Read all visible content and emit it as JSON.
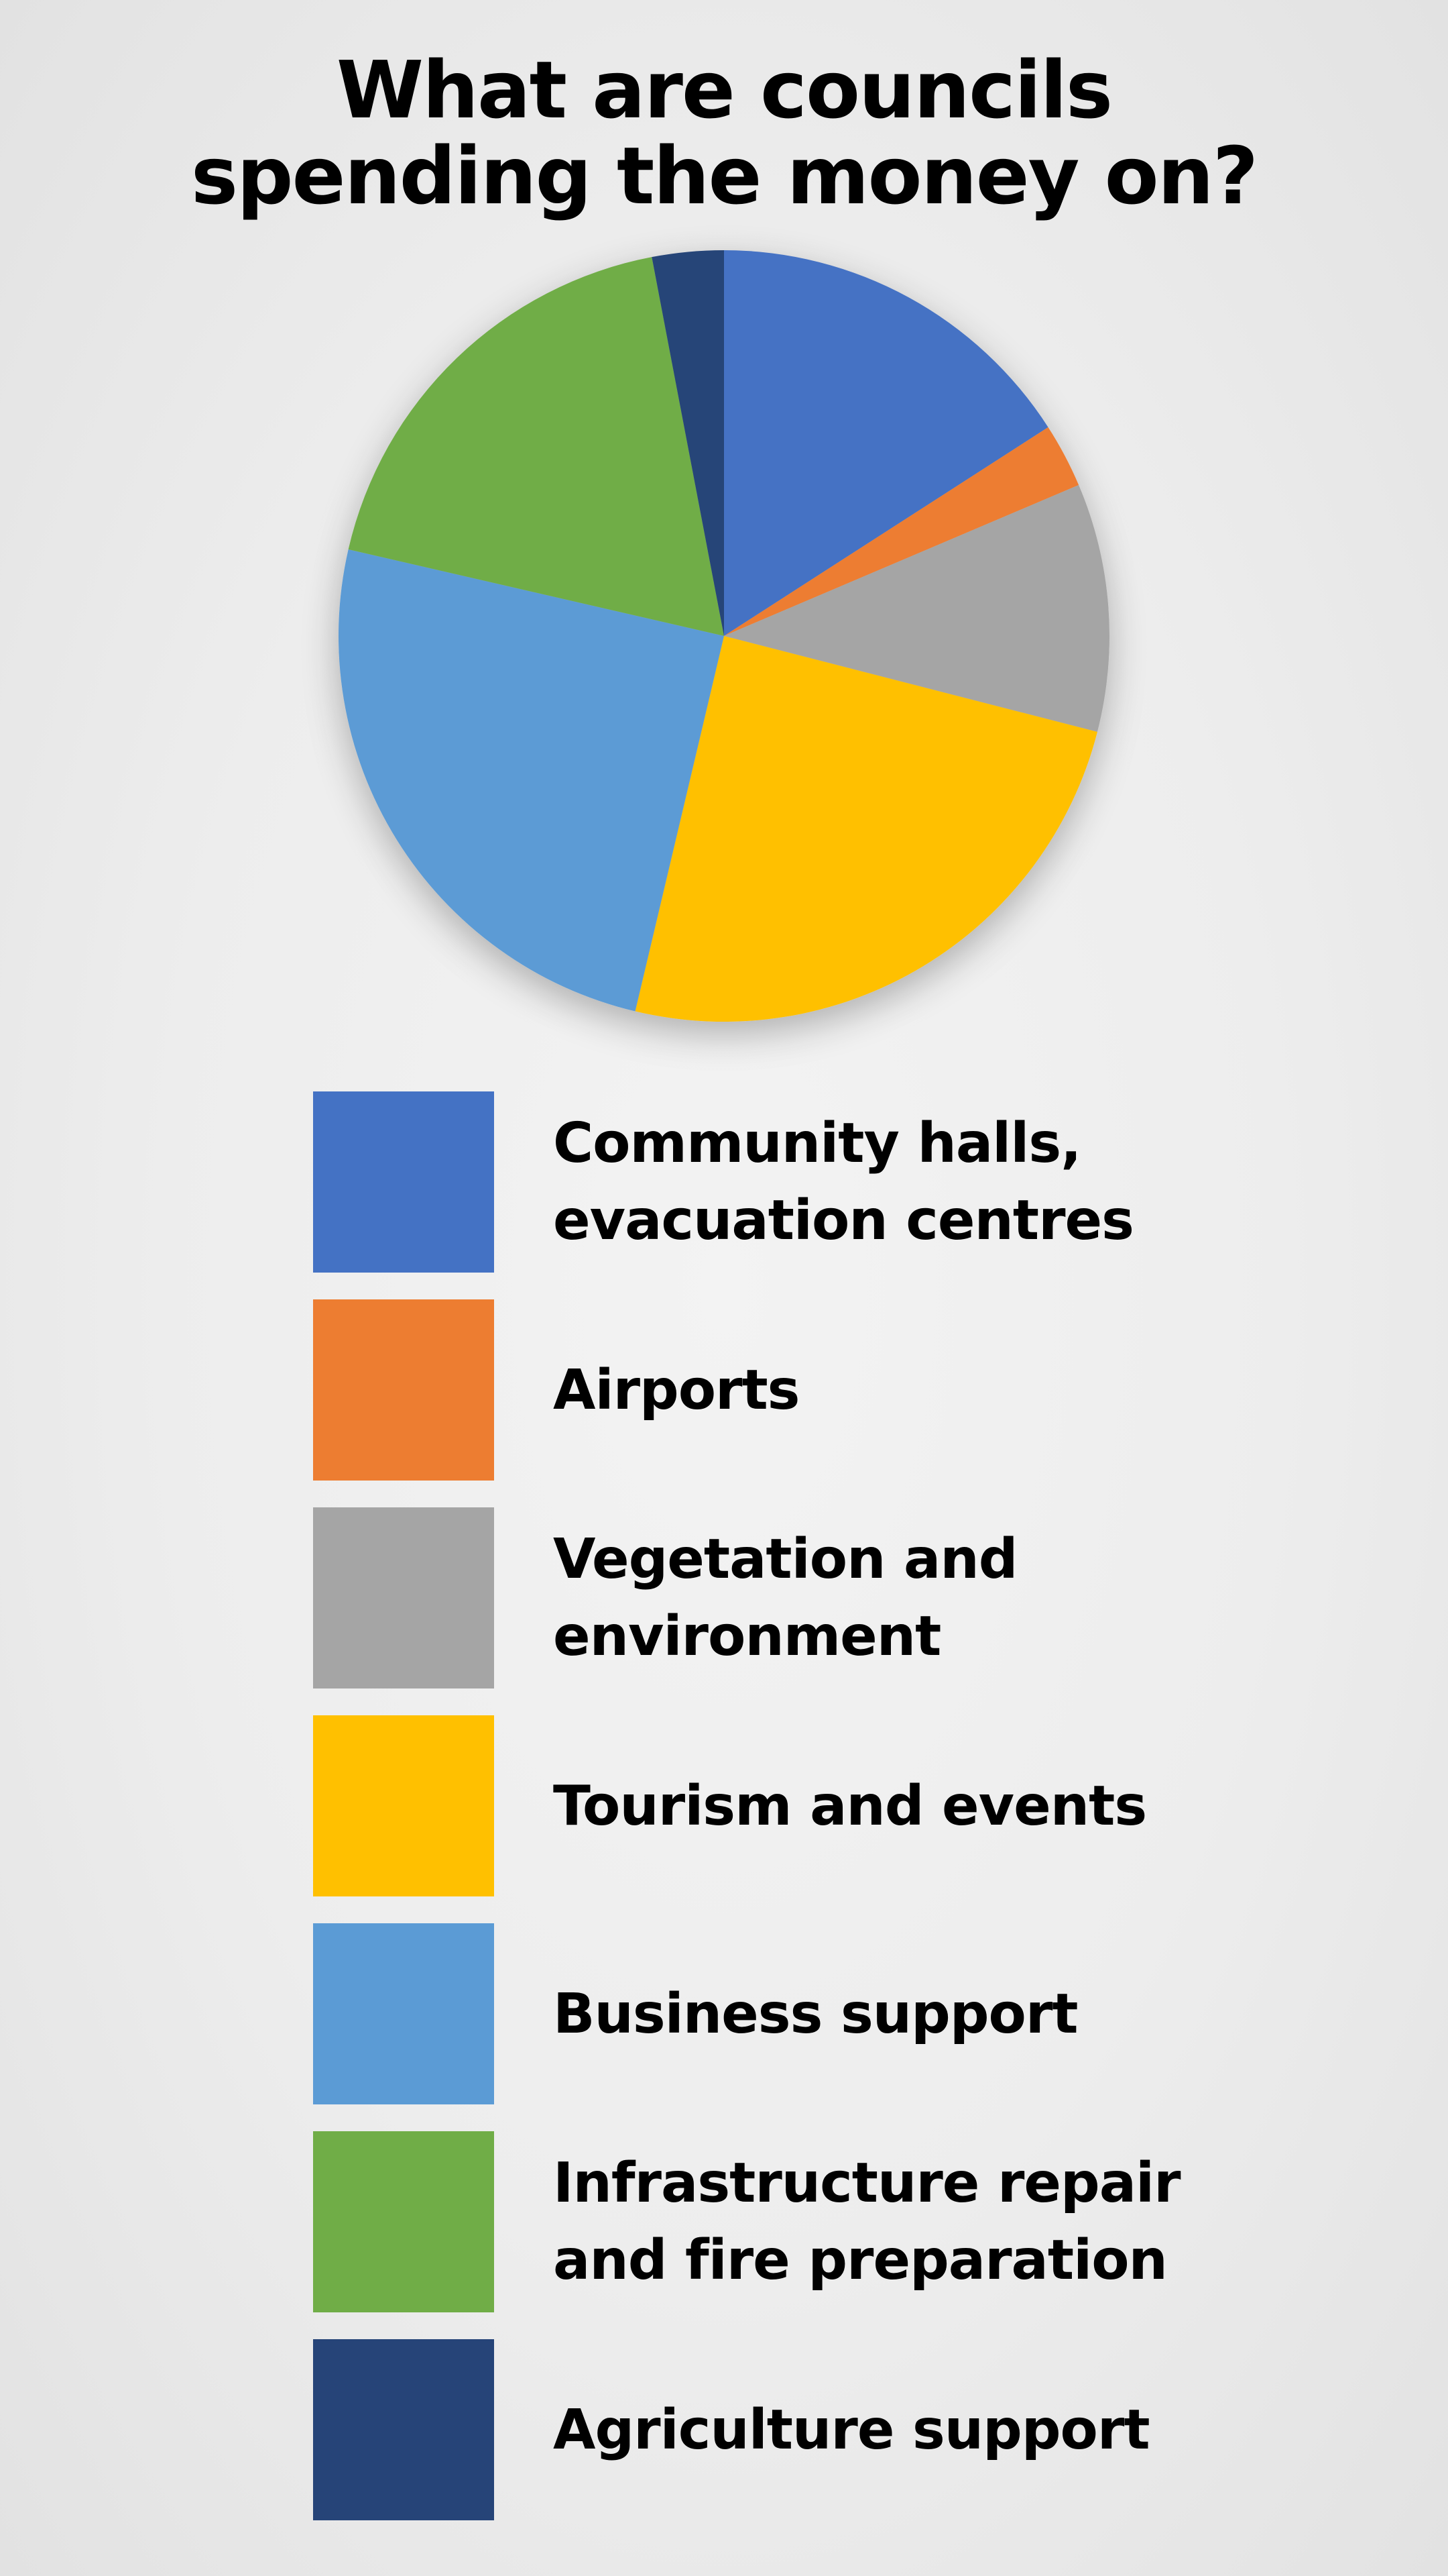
{
  "chart_data": {
    "type": "pie",
    "title_lines": [
      "What are councils",
      "spending the money on?"
    ],
    "legend_position": "bottom",
    "start_angle_deg": 0,
    "direction": "clockwise",
    "slices": [
      {
        "label_lines": [
          "Community halls,",
          "evacuation centres"
        ],
        "value": 15.9,
        "color": "#4472c4"
      },
      {
        "label_lines": [
          "Airports"
        ],
        "value": 2.7,
        "color": "#ed7d31"
      },
      {
        "label_lines": [
          "Vegetation and",
          "environment"
        ],
        "value": 10.4,
        "color": "#a5a5a5"
      },
      {
        "label_lines": [
          "Tourism and events"
        ],
        "value": 24.7,
        "color": "#ffc000"
      },
      {
        "label_lines": [
          "Business support"
        ],
        "value": 24.9,
        "color": "#5b9bd5"
      },
      {
        "label_lines": [
          "Infrastructure repair",
          "and fire preparation"
        ],
        "value": 18.4,
        "color": "#70ad47"
      },
      {
        "label_lines": [
          "Agriculture support"
        ],
        "value": 3.0,
        "color": "#264478"
      }
    ]
  }
}
